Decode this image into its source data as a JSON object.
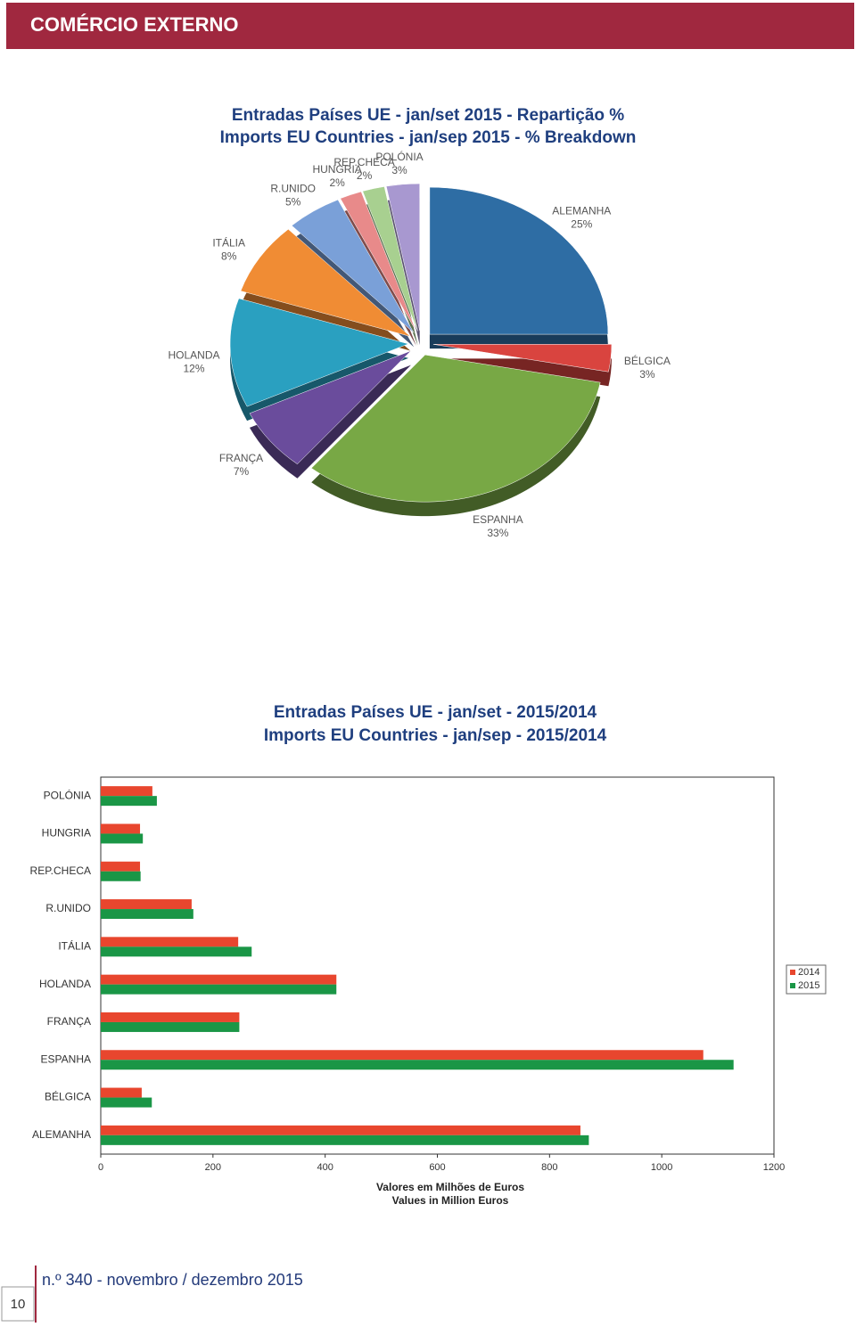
{
  "header": {
    "title": "COMÉRCIO EXTERNO"
  },
  "chart_data": [
    {
      "type": "pie",
      "title": [
        "Entradas Países UE - jan/set 2015 - Repartição %",
        "Imports EU Countries - jan/sep 2015 - % Breakdown"
      ],
      "categories": [
        "ALEMANHA",
        "BÉLGICA",
        "ESPANHA",
        "FRANÇA",
        "HOLANDA",
        "ITÁLIA",
        "R.UNIDO",
        "HUNGRIA",
        "REP.CHECA",
        "POLÓNIA"
      ],
      "values": [
        25,
        3,
        33,
        7,
        12,
        8,
        5,
        2,
        2,
        3
      ],
      "value_labels": [
        "25%",
        "3%",
        "33%",
        "7%",
        "12%",
        "8%",
        "5%",
        "2%",
        "2%",
        "3%"
      ],
      "colors": [
        "#2e6da4",
        "#d9443f",
        "#78a845",
        "#6a4c9c",
        "#2aa0c0",
        "#f08c34",
        "#7aa0d8",
        "#e88a8a",
        "#a8d090",
        "#a898d0"
      ]
    },
    {
      "type": "bar",
      "orientation": "horizontal",
      "title": [
        "Entradas Países UE - jan/set - 2015/2014",
        "Imports EU Countries - jan/sep - 2015/2014"
      ],
      "categories": [
        "POLÓNIA",
        "HUNGRIA",
        "REP.CHECA",
        "R.UNIDO",
        "ITÁLIA",
        "HOLANDA",
        "FRANÇA",
        "ESPANHA",
        "BÉLGICA",
        "ALEMANHA"
      ],
      "series": [
        {
          "name": "2014",
          "color": "#e8462e",
          "values": [
            92,
            70,
            70,
            162,
            245,
            420,
            247,
            1074,
            73,
            855
          ]
        },
        {
          "name": "2015",
          "color": "#1a9646",
          "values": [
            100,
            75,
            71,
            165,
            269,
            420,
            247,
            1128,
            91,
            870
          ]
        }
      ],
      "xlim": [
        0,
        1200
      ],
      "xticks": [
        0,
        200,
        400,
        600,
        800,
        1000,
        1200
      ],
      "xlabel": [
        "Valores em Milhões de Euros",
        "Values in Million Euros"
      ],
      "legend": "right",
      "grid": false
    }
  ],
  "footer": {
    "issue": "n.º 340 - novembro / dezembro 2015",
    "page": "10"
  }
}
